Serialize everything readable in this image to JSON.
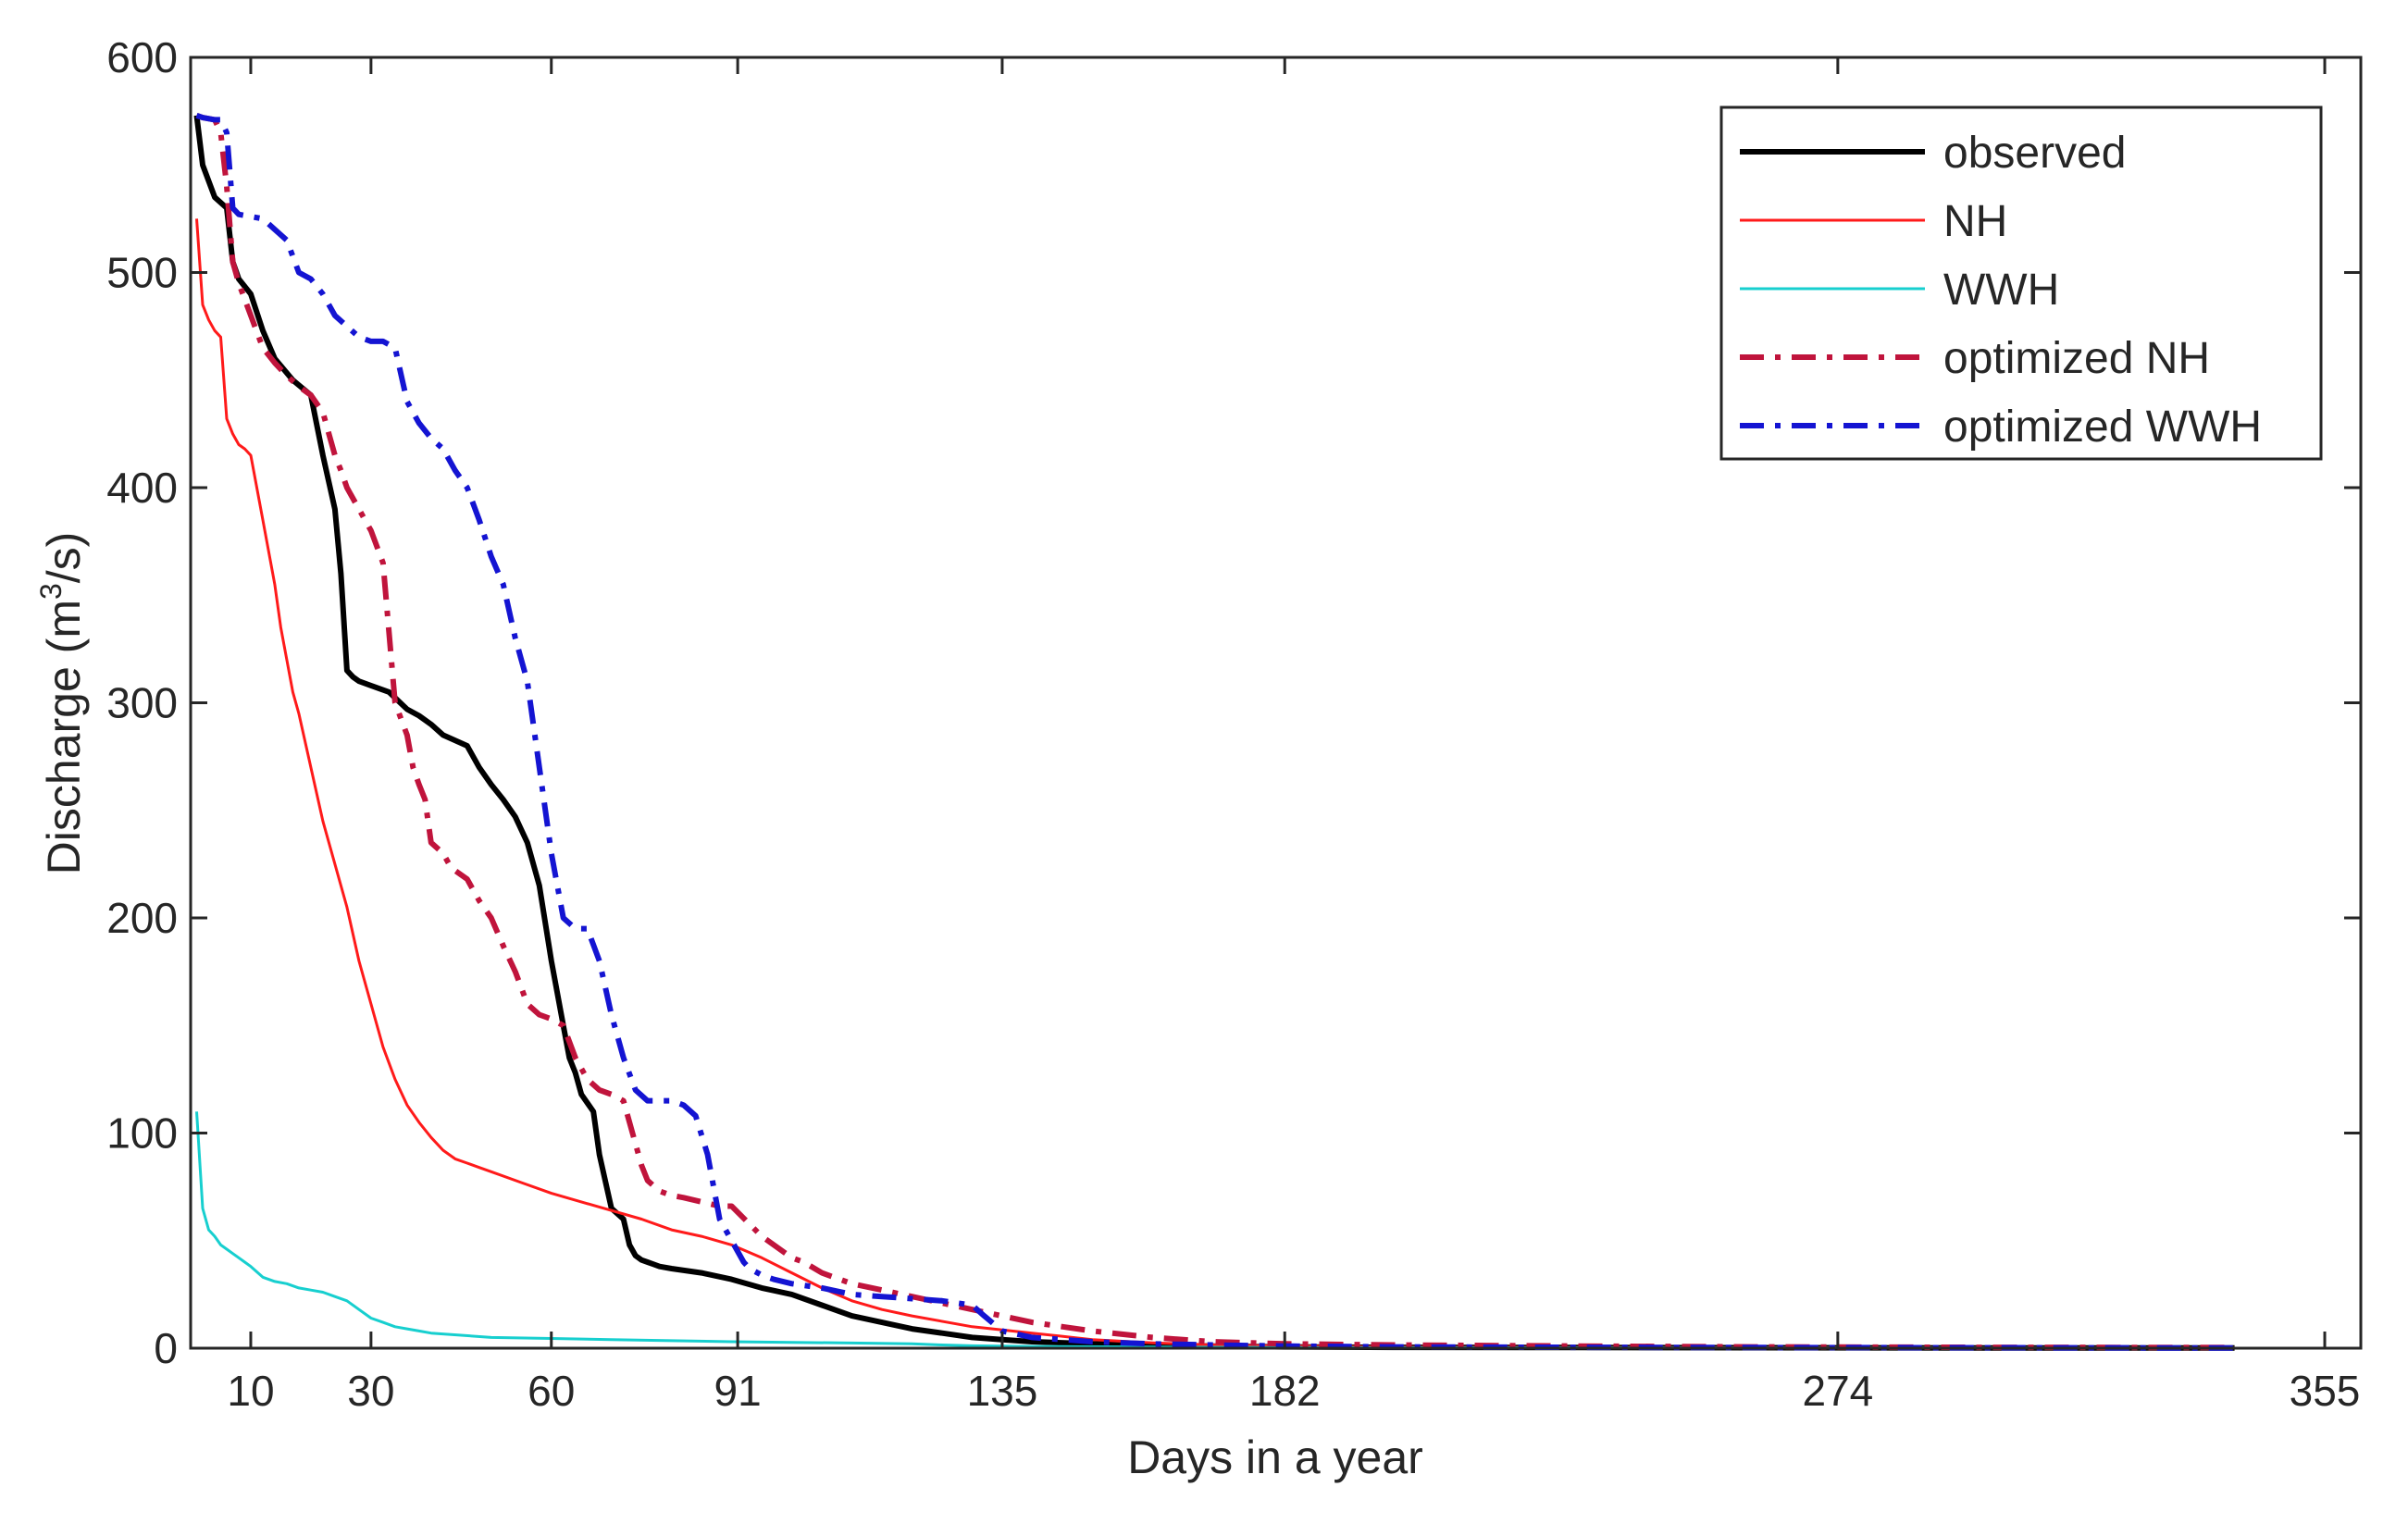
{
  "chart_data": {
    "type": "line",
    "title": "",
    "xlabel": "Days in a year",
    "ylabel": "Discharge (m",
    "ylabel_sup": "3",
    "ylabel_tail": "/s)",
    "xlim": [
      0,
      361
    ],
    "ylim": [
      0,
      600
    ],
    "xticks": [
      10,
      30,
      60,
      91,
      135,
      182,
      274,
      355
    ],
    "xtick_labels": [
      "10",
      "30",
      "60",
      "91",
      "135",
      "182",
      "274",
      "355"
    ],
    "yticks": [
      0,
      100,
      200,
      300,
      400,
      500,
      600
    ],
    "ytick_labels": [
      "0",
      "100",
      "200",
      "300",
      "400",
      "500",
      "600"
    ],
    "grid": false,
    "legend_position": "top-right",
    "series": [
      {
        "name": "observed",
        "color": "#000000",
        "style": "solid",
        "weight": "thick",
        "x": [
          1,
          2,
          4,
          6,
          7,
          8,
          10,
          12,
          14,
          17,
          20,
          22,
          24,
          25,
          26,
          27,
          28,
          30,
          33,
          36,
          38,
          40,
          42,
          46,
          48,
          50,
          52,
          54,
          56,
          58,
          60,
          62,
          63,
          64,
          65,
          66,
          67,
          68,
          70,
          72,
          73,
          74,
          75,
          76,
          77,
          78,
          80,
          85,
          90,
          95,
          100,
          105,
          110,
          115,
          120,
          125,
          130,
          135,
          140,
          150,
          160,
          170,
          182,
          200,
          230,
          260,
          300,
          340
        ],
        "values": [
          573,
          550,
          535,
          530,
          505,
          497,
          490,
          473,
          460,
          450,
          443,
          415,
          390,
          360,
          315,
          312,
          310,
          308,
          305,
          297,
          294,
          290,
          285,
          280,
          270,
          262,
          255,
          247,
          235,
          215,
          180,
          150,
          135,
          128,
          118,
          114,
          110,
          90,
          65,
          60,
          48,
          43,
          41,
          40,
          39,
          38,
          37,
          35,
          32,
          28,
          25,
          20,
          15,
          12,
          9,
          7,
          5,
          4,
          3,
          2,
          1.5,
          1,
          0.6,
          0.4,
          0.3,
          0.2,
          0.1,
          0.1
        ]
      },
      {
        "name": "NH",
        "color": "#ff1a1a",
        "style": "solid",
        "weight": "thin",
        "x": [
          1,
          2,
          3,
          4,
          5,
          6,
          7,
          8,
          9,
          10,
          12,
          14,
          15,
          16,
          17,
          18,
          20,
          22,
          24,
          26,
          28,
          30,
          32,
          34,
          36,
          38,
          40,
          42,
          44,
          46,
          48,
          50,
          55,
          60,
          65,
          70,
          75,
          80,
          85,
          90,
          95,
          100,
          105,
          110,
          115,
          120,
          130,
          140,
          150,
          160,
          170,
          182,
          200,
          230,
          260,
          300,
          340
        ],
        "values": [
          525,
          485,
          478,
          473,
          470,
          432,
          425,
          420,
          418,
          415,
          385,
          355,
          335,
          320,
          305,
          295,
          270,
          245,
          225,
          205,
          180,
          160,
          140,
          125,
          113,
          105,
          98,
          92,
          88,
          86,
          84,
          82,
          77,
          72,
          68,
          64,
          60,
          55,
          52,
          48,
          42,
          35,
          28,
          22,
          18,
          15,
          10,
          7,
          4,
          2.5,
          1.5,
          1,
          0.5,
          0.3,
          0.2,
          0.1,
          0.1
        ]
      },
      {
        "name": "WWH",
        "color": "#17cfcf",
        "style": "solid",
        "weight": "thin",
        "x": [
          1,
          2,
          3,
          4,
          5,
          6,
          7,
          8,
          9,
          10,
          12,
          14,
          16,
          18,
          20,
          22,
          24,
          26,
          28,
          30,
          32,
          34,
          36,
          38,
          40,
          45,
          50,
          60,
          70,
          80,
          90,
          100,
          110,
          120,
          125,
          130,
          140,
          160,
          182,
          220,
          260,
          300,
          340
        ],
        "values": [
          110,
          65,
          55,
          52,
          48,
          46,
          44,
          42,
          40,
          38,
          33,
          31,
          30,
          28,
          27,
          26,
          24,
          22,
          18,
          14,
          12,
          10,
          9,
          8,
          7,
          6,
          5,
          4.5,
          4,
          3.5,
          3,
          2.7,
          2.4,
          2,
          1.5,
          1.1,
          0.8,
          0.5,
          0.3,
          0.2,
          0.1,
          0.1,
          0.05
        ]
      },
      {
        "name": "optimized NH",
        "color": "#c0143c",
        "style": "dashdot",
        "weight": "thick",
        "x": [
          1,
          2,
          4,
          5,
          6,
          7,
          8,
          10,
          12,
          14,
          16,
          18,
          20,
          22,
          24,
          25,
          26,
          28,
          30,
          32,
          34,
          36,
          37,
          38,
          39,
          40,
          42,
          43,
          44,
          46,
          48,
          50,
          52,
          54,
          56,
          58,
          60,
          62,
          64,
          66,
          68,
          70,
          72,
          74,
          75,
          76,
          78,
          80,
          82,
          85,
          88,
          90,
          95,
          100,
          102,
          105,
          110,
          115,
          120,
          125,
          130,
          135,
          140,
          150,
          160,
          170,
          182,
          200,
          230,
          260,
          300,
          340
        ],
        "values": [
          573,
          572,
          571,
          565,
          540,
          505,
          495,
          480,
          465,
          458,
          452,
          447,
          443,
          435,
          415,
          408,
          400,
          390,
          380,
          365,
          300,
          285,
          270,
          262,
          255,
          235,
          230,
          225,
          222,
          218,
          208,
          200,
          187,
          175,
          160,
          155,
          153,
          150,
          135,
          125,
          120,
          118,
          115,
          95,
          85,
          78,
          73,
          71,
          70,
          68,
          66,
          66,
          52,
          42,
          40,
          35,
          30,
          27,
          24,
          21,
          18,
          15,
          12,
          8,
          5,
          3,
          2,
          1.5,
          1,
          0.6,
          0.4,
          0.3
        ]
      },
      {
        "name": "optimized WWH",
        "color": "#1414d2",
        "style": "dashdot",
        "weight": "thick",
        "x": [
          1,
          2,
          4,
          5,
          6,
          7,
          8,
          10,
          12,
          14,
          16,
          18,
          20,
          22,
          24,
          26,
          28,
          30,
          32,
          34,
          36,
          38,
          40,
          42,
          44,
          46,
          48,
          50,
          52,
          54,
          56,
          58,
          60,
          62,
          64,
          66,
          68,
          70,
          72,
          74,
          76,
          78,
          80,
          82,
          84,
          86,
          88,
          90,
          91,
          92,
          93,
          95,
          97,
          100,
          105,
          110,
          115,
          120,
          125,
          130,
          132,
          135,
          140,
          150,
          160,
          170,
          182,
          200,
          230,
          260,
          300,
          340
        ],
        "values": [
          573,
          572,
          571,
          571,
          565,
          530,
          527,
          526,
          525,
          520,
          515,
          500,
          497,
          490,
          480,
          475,
          470,
          468,
          468,
          465,
          440,
          430,
          423,
          418,
          408,
          400,
          385,
          368,
          355,
          330,
          310,
          270,
          230,
          200,
          195,
          195,
          180,
          155,
          135,
          120,
          115,
          115,
          115,
          113,
          108,
          90,
          60,
          50,
          45,
          40,
          37,
          34,
          32,
          30,
          28,
          25,
          24,
          23,
          22,
          20,
          15,
          8,
          5,
          3,
          2,
          1.5,
          1,
          0.6,
          0.4,
          0.3,
          0.2,
          0.1
        ]
      }
    ]
  }
}
